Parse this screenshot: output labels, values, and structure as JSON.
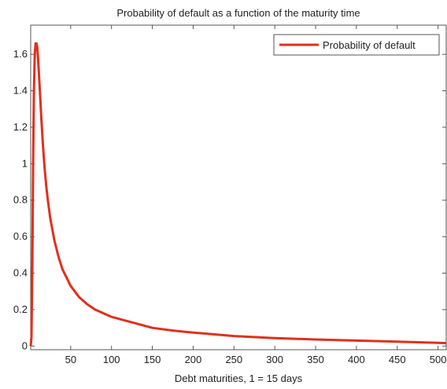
{
  "chart_data": {
    "type": "line",
    "title": "Probability of default as a function of the maturity time",
    "xlabel": "Debt maturities, 1 = 15 days",
    "ylabel": "",
    "xlim": [
      1,
      510
    ],
    "ylim": [
      -0.02,
      1.76
    ],
    "xticks": [
      50,
      100,
      150,
      200,
      250,
      300,
      350,
      400,
      450,
      500
    ],
    "yticks": [
      0,
      0.2,
      0.4,
      0.6,
      0.8,
      1,
      1.2,
      1.4,
      1.6
    ],
    "ytick_labels": [
      "0",
      "0.2",
      "0.4",
      "0.6",
      "0.8",
      "1",
      "1.2",
      "1.4",
      "1.6"
    ],
    "grid": false,
    "legend_position": "top-right",
    "series": [
      {
        "name": "Probability of default",
        "color": "#e0301e",
        "x": [
          1,
          2,
          3,
          4,
          5,
          6,
          7,
          8,
          9,
          10,
          11,
          12,
          14,
          16,
          18,
          20,
          22,
          25,
          30,
          35,
          40,
          50,
          60,
          70,
          80,
          100,
          125,
          150,
          175,
          200,
          250,
          300,
          350,
          400,
          450,
          500,
          510
        ],
        "values": [
          0.0,
          0.05,
          0.45,
          1.0,
          1.4,
          1.6,
          1.66,
          1.66,
          1.64,
          1.58,
          1.5,
          1.42,
          1.25,
          1.1,
          0.98,
          0.88,
          0.8,
          0.7,
          0.58,
          0.49,
          0.42,
          0.33,
          0.27,
          0.23,
          0.2,
          0.16,
          0.13,
          0.1,
          0.085,
          0.074,
          0.055,
          0.044,
          0.036,
          0.03,
          0.024,
          0.018,
          0.016
        ]
      }
    ]
  }
}
